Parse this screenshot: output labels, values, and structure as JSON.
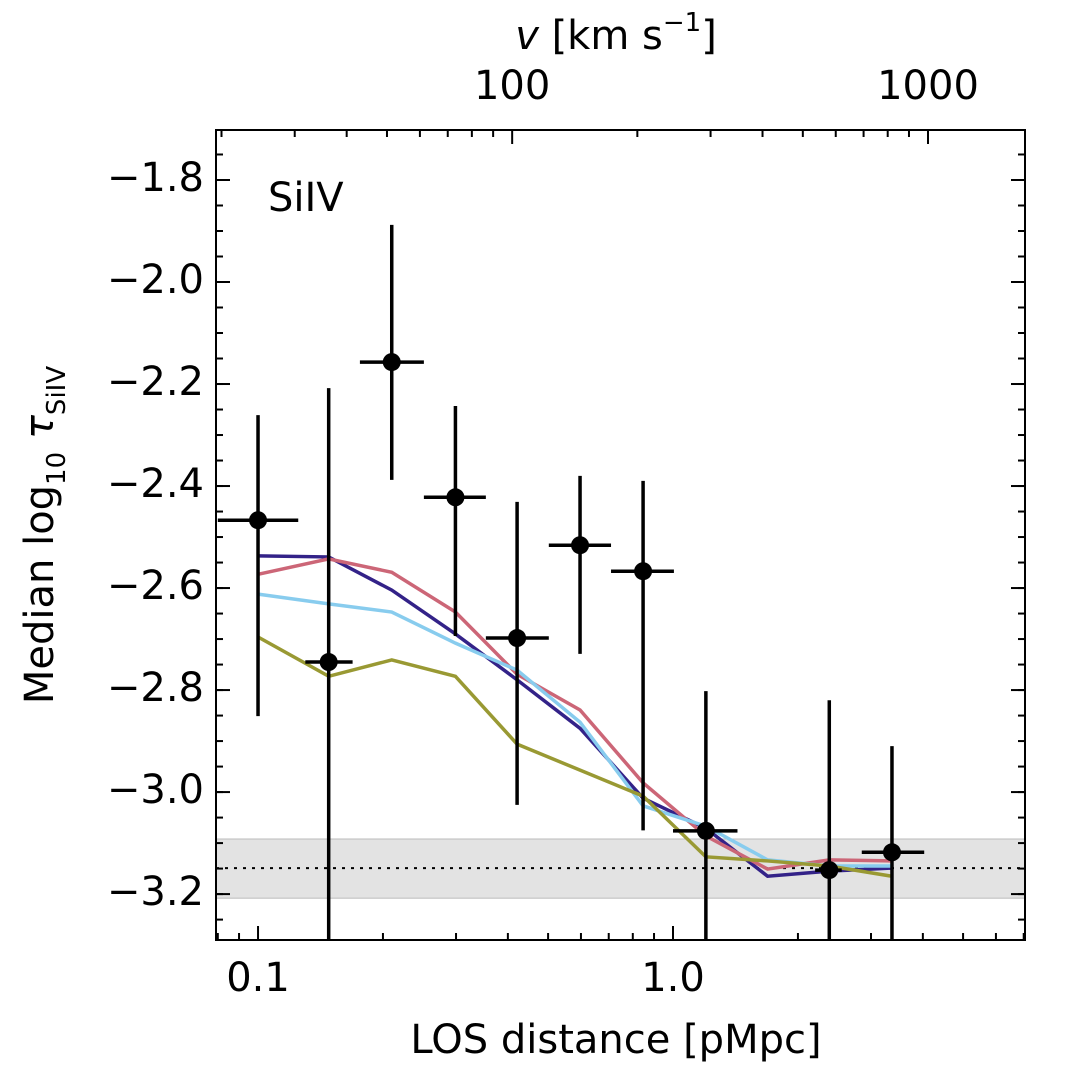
{
  "chart_data": {
    "type": "line",
    "annotation": "SiIV",
    "xlabel": "LOS distance [pMpc]",
    "ylabel_parts": [
      "Median log",
      "10",
      " τ",
      "SiIV"
    ],
    "x2label_parts": [
      "v",
      " [km s",
      "−1",
      "]"
    ],
    "xscale": "log",
    "xlim": [
      0.0792,
      7.05
    ],
    "xticks": [
      0.1,
      {
        "value": 1,
        "label": "1.0"
      }
    ],
    "x2lim": [
      19.4,
      1711
    ],
    "x2ticks": [
      100,
      1000
    ],
    "ylim": [
      -3.29,
      -1.702
    ],
    "yticks": [
      {
        "value": -1.8,
        "label": "−1.8"
      },
      {
        "value": -2.0,
        "label": "−2.0"
      },
      {
        "value": -2.2,
        "label": "−2.2"
      },
      {
        "value": -2.4,
        "label": "−2.4"
      },
      {
        "value": -2.6,
        "label": "−2.6"
      },
      {
        "value": -2.8,
        "label": "−2.8"
      },
      {
        "value": -3.0,
        "label": "−3.0"
      },
      {
        "value": -3.2,
        "label": "−3.2"
      }
    ],
    "band": [
      -3.208,
      -3.092
    ],
    "band_color": "#e3e3e3",
    "reference_line": -3.149,
    "x": [
      0.1,
      0.148,
      0.21,
      0.299,
      0.421,
      0.597,
      0.847,
      1.2,
      1.69,
      2.38,
      3.37
    ],
    "series": [
      {
        "color": "#332288",
        "values": [
          -2.537,
          -2.539,
          -2.604,
          -2.69,
          -2.78,
          -2.875,
          -3.012,
          -3.071,
          -3.165,
          -3.155,
          -3.149
        ]
      },
      {
        "color": "#cc6677",
        "values": [
          -2.573,
          -2.543,
          -2.569,
          -2.647,
          -2.769,
          -2.839,
          -2.982,
          -3.086,
          -3.151,
          -3.133,
          -3.135
        ]
      },
      {
        "color": "#88ccee",
        "values": [
          -2.612,
          -2.631,
          -2.647,
          -2.708,
          -2.761,
          -2.863,
          -3.027,
          -3.067,
          -3.133,
          -3.145,
          -3.145
        ]
      },
      {
        "color": "#999933",
        "values": [
          -2.696,
          -2.773,
          -2.741,
          -2.773,
          -2.906,
          -2.957,
          -3.008,
          -3.127,
          -3.135,
          -3.145,
          -3.165
        ]
      }
    ],
    "points": {
      "color": "#000000",
      "x": [
        0.1,
        0.148,
        0.21,
        0.299,
        0.421,
        0.597,
        0.847,
        1.2,
        2.38,
        3.37
      ],
      "y": [
        -2.467,
        -2.745,
        -2.157,
        -2.422,
        -2.698,
        -2.516,
        -2.567,
        -3.076,
        -3.153,
        -3.118
      ],
      "y_lower": [
        -2.851,
        -3.5,
        -2.388,
        -2.694,
        -3.025,
        -2.729,
        -3.075,
        -3.5,
        -3.5,
        -3.3
      ],
      "y_upper": [
        -2.261,
        -2.208,
        -1.888,
        -2.243,
        -2.431,
        -2.38,
        -2.39,
        -2.802,
        -2.82,
        -2.91
      ],
      "x_lower": [
        0.08,
        0.13,
        0.176,
        0.251,
        0.354,
        0.502,
        0.709,
        1.0,
        2.2,
        2.85
      ],
      "x_upper": [
        0.125,
        0.169,
        0.251,
        0.354,
        0.502,
        0.709,
        1.005,
        1.43,
        2.55,
        4.03
      ]
    }
  }
}
